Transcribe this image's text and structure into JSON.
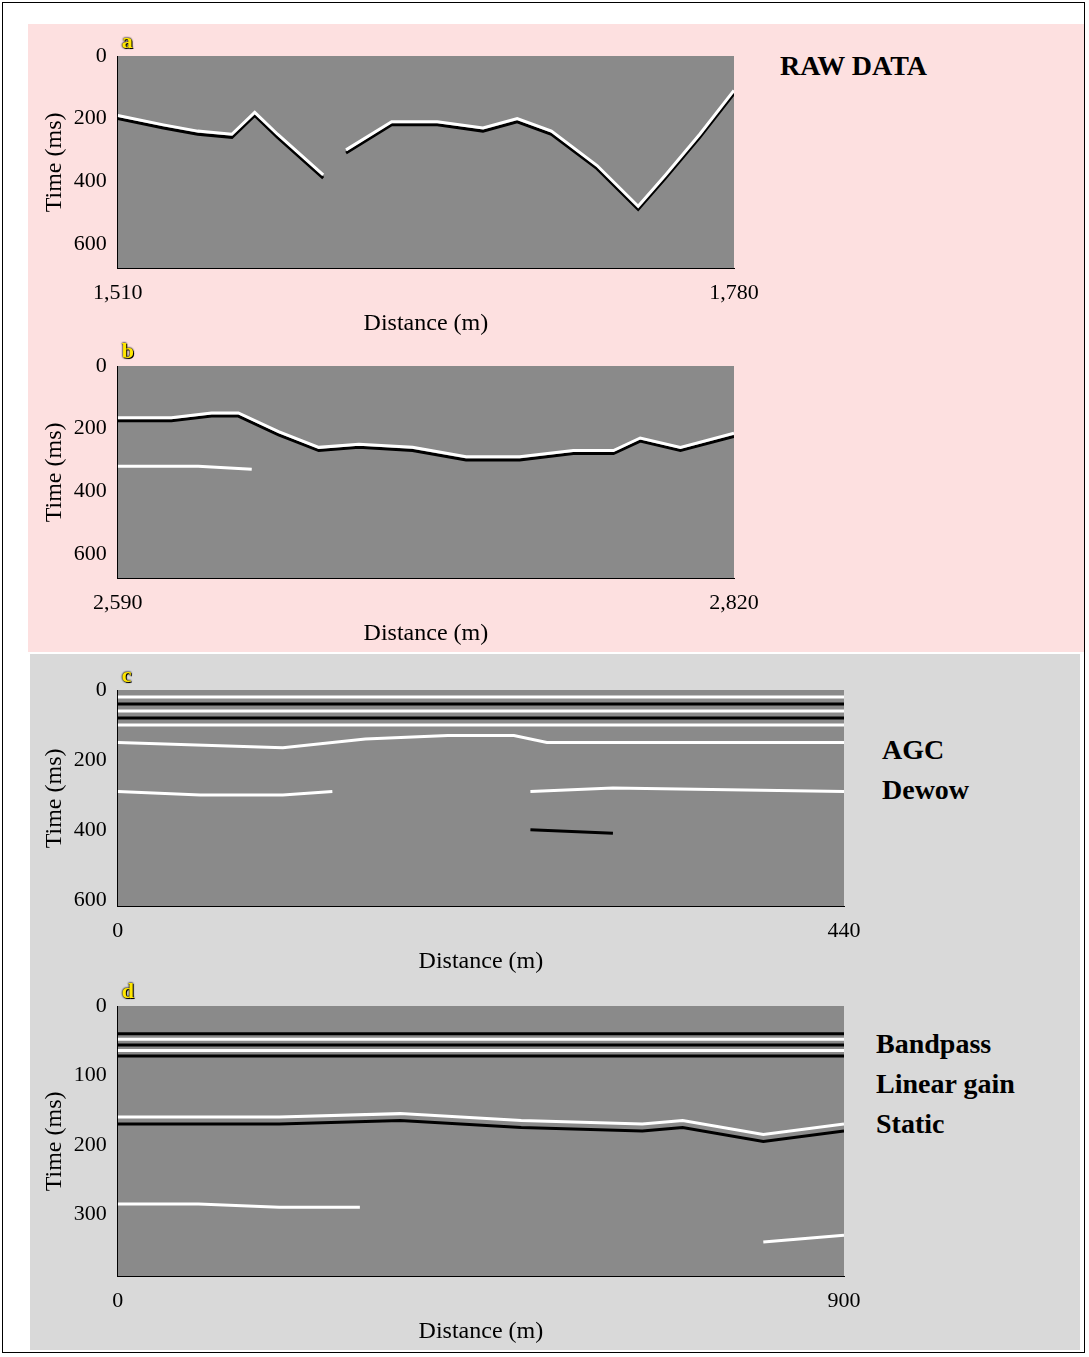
{
  "chart_data": [
    {
      "type": "line",
      "panel": "a",
      "annotations": [
        "RAW DATA"
      ],
      "x_label": "Distance (m)",
      "y_label": "Time (ms)",
      "xlim": [
        1510,
        1780
      ],
      "xticks": [
        1510,
        1780
      ],
      "ylim": [
        0,
        680
      ],
      "yticks": [
        0,
        200,
        400,
        600
      ],
      "grid": false,
      "tick_labels": true,
      "series": [
        {
          "color": "#ffffff",
          "line_style": "solid",
          "x": [
            1510,
            1530,
            1545,
            1560,
            1570,
            1580,
            1600,
            1605,
            1610,
            1630,
            1650,
            1670,
            1685,
            1700,
            1720,
            1738,
            1750,
            1765,
            1780
          ],
          "values": [
            190,
            220,
            240,
            250,
            180,
            250,
            380,
            null,
            300,
            210,
            210,
            230,
            200,
            240,
            350,
            480,
            380,
            250,
            110
          ]
        },
        {
          "color": "#000000",
          "line_style": "solid",
          "x": [
            1510,
            1530,
            1545,
            1560,
            1570,
            1580,
            1600,
            1605,
            1610,
            1630,
            1650,
            1670,
            1685,
            1700,
            1720,
            1738,
            1750,
            1765,
            1780
          ],
          "values": [
            200,
            230,
            250,
            260,
            190,
            260,
            390,
            null,
            310,
            220,
            220,
            240,
            210,
            250,
            360,
            490,
            390,
            260,
            120
          ]
        }
      ]
    },
    {
      "type": "line",
      "panel": "b",
      "annotations": [],
      "x_label": "Distance (m)",
      "y_label": "Time (ms)",
      "xlim": [
        2590,
        2820
      ],
      "xticks": [
        2590,
        2820
      ],
      "ylim": [
        0,
        680
      ],
      "yticks": [
        0,
        200,
        400,
        600
      ],
      "grid": false,
      "tick_labels": true,
      "series": [
        {
          "color": "#ffffff",
          "line_style": "solid",
          "x": [
            2590,
            2610,
            2625,
            2635,
            2650,
            2665,
            2680,
            2700,
            2720,
            2740,
            2760,
            2775,
            2785,
            2800,
            2820
          ],
          "values": [
            165,
            165,
            150,
            150,
            210,
            260,
            250,
            260,
            290,
            290,
            270,
            270,
            230,
            260,
            215
          ]
        },
        {
          "color": "#000000",
          "line_style": "solid",
          "x": [
            2590,
            2610,
            2625,
            2635,
            2650,
            2665,
            2680,
            2700,
            2720,
            2740,
            2760,
            2775,
            2785,
            2800,
            2820
          ],
          "values": [
            175,
            175,
            160,
            160,
            220,
            270,
            260,
            270,
            300,
            300,
            280,
            280,
            240,
            270,
            225
          ]
        },
        {
          "color": "#ffffff",
          "line_style": "solid",
          "x": [
            2590,
            2620,
            2640
          ],
          "values": [
            320,
            320,
            330
          ]
        }
      ]
    },
    {
      "type": "line",
      "panel": "c",
      "annotations": [
        "AGC",
        "Dewow"
      ],
      "x_label": "Distance (m)",
      "y_label": "Time (ms)",
      "xlim": [
        0,
        440
      ],
      "xticks": [
        0,
        440
      ],
      "ylim": [
        0,
        620
      ],
      "yticks": [
        0,
        200,
        400,
        600
      ],
      "grid": false,
      "tick_labels": true,
      "series": [
        {
          "color": "#ffffff",
          "line_style": "solid",
          "x": [
            0,
            440
          ],
          "values": [
            20,
            20
          ]
        },
        {
          "color": "#000000",
          "line_style": "solid",
          "x": [
            0,
            440
          ],
          "values": [
            40,
            40
          ]
        },
        {
          "color": "#ffffff",
          "line_style": "solid",
          "x": [
            0,
            440
          ],
          "values": [
            60,
            60
          ]
        },
        {
          "color": "#000000",
          "line_style": "solid",
          "x": [
            0,
            440
          ],
          "values": [
            80,
            80
          ]
        },
        {
          "color": "#ffffff",
          "line_style": "solid",
          "x": [
            0,
            440
          ],
          "values": [
            100,
            100
          ]
        },
        {
          "color": "#ffffff",
          "line_style": "solid",
          "x": [
            0,
            100,
            150,
            200,
            240,
            260,
            440
          ],
          "values": [
            150,
            165,
            140,
            130,
            130,
            150,
            150
          ]
        },
        {
          "color": "#ffffff",
          "line_style": "solid",
          "x": [
            0,
            50,
            100,
            130,
            190,
            250,
            300,
            440
          ],
          "values": [
            290,
            300,
            300,
            290,
            null,
            290,
            280,
            290
          ]
        },
        {
          "color": "#000000",
          "line_style": "solid",
          "x": [
            250,
            300
          ],
          "values": [
            400,
            410
          ]
        }
      ]
    },
    {
      "type": "line",
      "panel": "d",
      "annotations": [
        "Bandpass",
        "Linear gain",
        "Static"
      ],
      "x_label": "Distance (m)",
      "y_label": "Time (ms)",
      "xlim": [
        0,
        900
      ],
      "xticks": [
        0,
        900
      ],
      "ylim": [
        0,
        390
      ],
      "yticks": [
        0,
        100,
        200,
        300
      ],
      "grid": false,
      "tick_labels": true,
      "series": [
        {
          "color": "#000000",
          "line_style": "solid",
          "x": [
            0,
            900
          ],
          "values": [
            40,
            40
          ]
        },
        {
          "color": "#ffffff",
          "line_style": "solid",
          "x": [
            0,
            900
          ],
          "values": [
            48,
            48
          ]
        },
        {
          "color": "#000000",
          "line_style": "solid",
          "x": [
            0,
            900
          ],
          "values": [
            56,
            56
          ]
        },
        {
          "color": "#ffffff",
          "line_style": "solid",
          "x": [
            0,
            900
          ],
          "values": [
            64,
            64
          ]
        },
        {
          "color": "#000000",
          "line_style": "solid",
          "x": [
            0,
            900
          ],
          "values": [
            72,
            72
          ]
        },
        {
          "color": "#ffffff",
          "line_style": "solid",
          "x": [
            0,
            200,
            350,
            500,
            650,
            700,
            800,
            900
          ],
          "values": [
            160,
            160,
            155,
            165,
            170,
            165,
            185,
            170
          ]
        },
        {
          "color": "#000000",
          "line_style": "solid",
          "x": [
            0,
            200,
            350,
            500,
            650,
            700,
            800,
            900
          ],
          "values": [
            170,
            170,
            165,
            175,
            180,
            175,
            195,
            180
          ]
        },
        {
          "color": "#ffffff",
          "line_style": "solid",
          "x": [
            0,
            100,
            200,
            300,
            550,
            800,
            900
          ],
          "values": [
            285,
            285,
            290,
            290,
            null,
            340,
            330
          ]
        }
      ]
    }
  ]
}
